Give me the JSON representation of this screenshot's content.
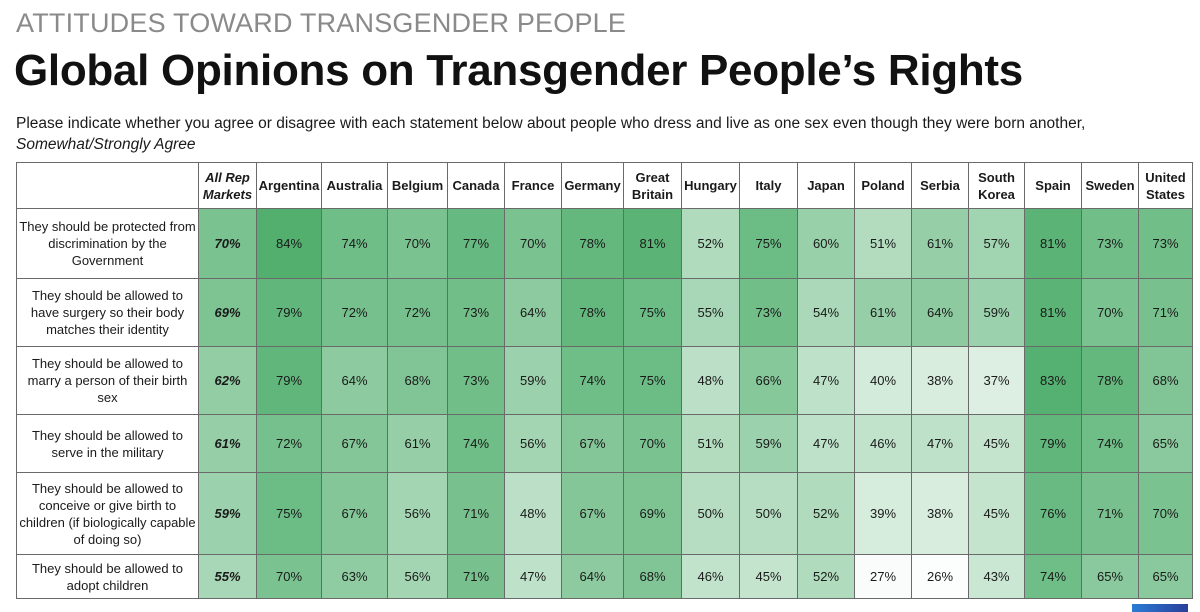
{
  "header": {
    "kicker": "ATTITUDES TOWARD TRANSGENDER PEOPLE",
    "title": "Global Opinions on Transgender People’s Rights",
    "subtitle": "Please indicate whether you agree or disagree with each statement below about people who dress and live as one sex even though they were born another,",
    "subtitle_em": "Somewhat/Strongly Agree"
  },
  "colors": {
    "scale_low": "#ffffff",
    "scale_high": "#4fae6c",
    "border": "#6a6a6a"
  },
  "chart_data": {
    "type": "heatmap",
    "title": "Global Opinions on Transgender People’s Rights",
    "value_suffix": "%",
    "color_range": [
      25,
      85
    ],
    "columns": [
      "All Rep Markets",
      "Argentina",
      "Australia",
      "Belgium",
      "Canada",
      "France",
      "Germany",
      "Great Britain",
      "Hungary",
      "Italy",
      "Japan",
      "Poland",
      "Serbia",
      "South Korea",
      "Spain",
      "Sweden",
      "United States"
    ],
    "rows": [
      {
        "label": "They should be protected from discrimination by the Government",
        "values": [
          70,
          84,
          74,
          70,
          77,
          70,
          78,
          81,
          52,
          75,
          60,
          51,
          61,
          57,
          81,
          73,
          73
        ]
      },
      {
        "label": "They should be allowed to have surgery so their body matches their identity",
        "values": [
          69,
          79,
          72,
          72,
          73,
          64,
          78,
          75,
          55,
          73,
          54,
          61,
          64,
          59,
          81,
          70,
          71
        ]
      },
      {
        "label": "They should be allowed to marry a person of their birth sex",
        "values": [
          62,
          79,
          64,
          68,
          73,
          59,
          74,
          75,
          48,
          66,
          47,
          40,
          38,
          37,
          83,
          78,
          68
        ]
      },
      {
        "label": "They should be allowed to serve in the military",
        "values": [
          61,
          72,
          67,
          61,
          74,
          56,
          67,
          70,
          51,
          59,
          47,
          46,
          47,
          45,
          79,
          74,
          65
        ]
      },
      {
        "label": "They should be allowed to conceive or give birth to children (if biologically capable of doing so)",
        "values": [
          59,
          75,
          67,
          56,
          71,
          48,
          67,
          69,
          50,
          50,
          52,
          39,
          38,
          45,
          76,
          71,
          70
        ]
      },
      {
        "label": "They should be allowed to adopt children",
        "values": [
          55,
          70,
          63,
          56,
          71,
          47,
          64,
          68,
          46,
          45,
          52,
          27,
          26,
          43,
          74,
          65,
          65
        ]
      }
    ]
  }
}
